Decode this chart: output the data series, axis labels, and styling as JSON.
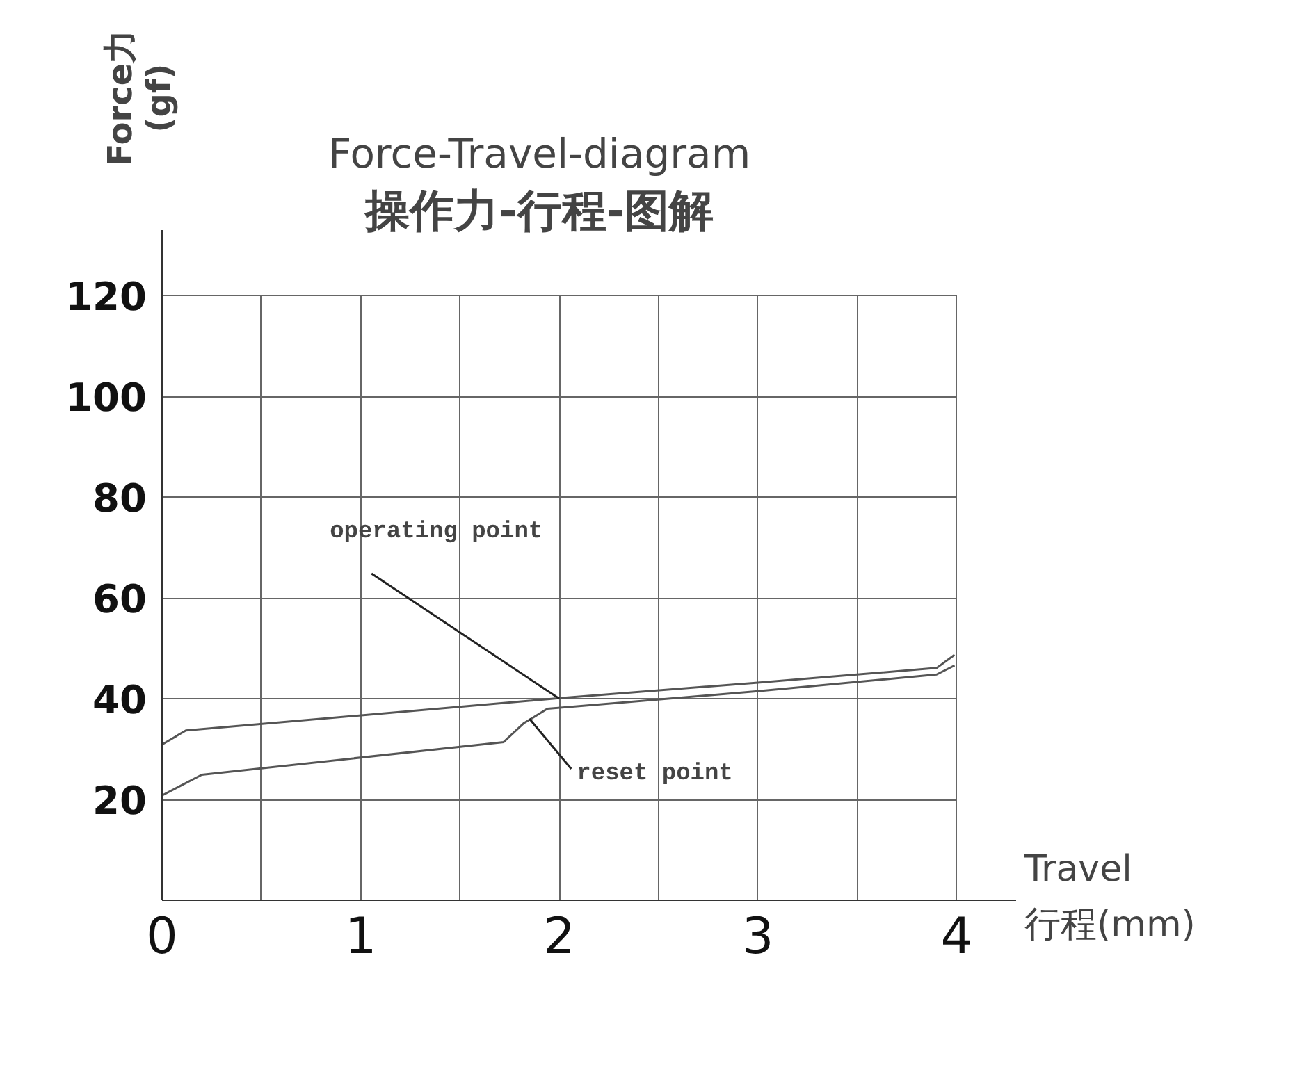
{
  "chart_data": {
    "type": "line",
    "title": "Force-Travel-diagram",
    "subtitle": "操作力-行程-图解",
    "xlabel": "Travel 行程(mm)",
    "ylabel": "Force力 (gf)",
    "series": [
      {
        "color": "#555555",
        "x": [
          0,
          0.12,
          2,
          3,
          3.9,
          3.99
        ],
        "values": [
          30.9,
          33.7,
          40.1,
          43.2,
          46.1,
          48.7
        ]
      },
      {
        "color": "#555555",
        "x": [
          0,
          0.2,
          1.72,
          1.82,
          1.94,
          3,
          3.9,
          3.99
        ],
        "values": [
          20.8,
          24.9,
          31.4,
          35.1,
          38.0,
          41.5,
          44.8,
          46.6
        ]
      }
    ],
    "annotations": [
      {
        "text": "operating point",
        "x": 2,
        "y": 40
      },
      {
        "text": "reset point",
        "x": 1.85,
        "y": 36
      }
    ],
    "xlim": [
      0,
      4.3
    ],
    "ylim": [
      0,
      133
    ],
    "xticks": [
      0,
      {
        "value": 0.5,
        "label": null
      },
      1,
      {
        "value": 1.5,
        "label": null
      },
      2,
      {
        "value": 2.5,
        "label": null
      },
      3,
      {
        "value": 3.5,
        "label": null
      },
      4
    ],
    "yticks": [
      20,
      40,
      60,
      80,
      100,
      120
    ],
    "grid": true,
    "line_style": "solid",
    "marker": "none"
  }
}
